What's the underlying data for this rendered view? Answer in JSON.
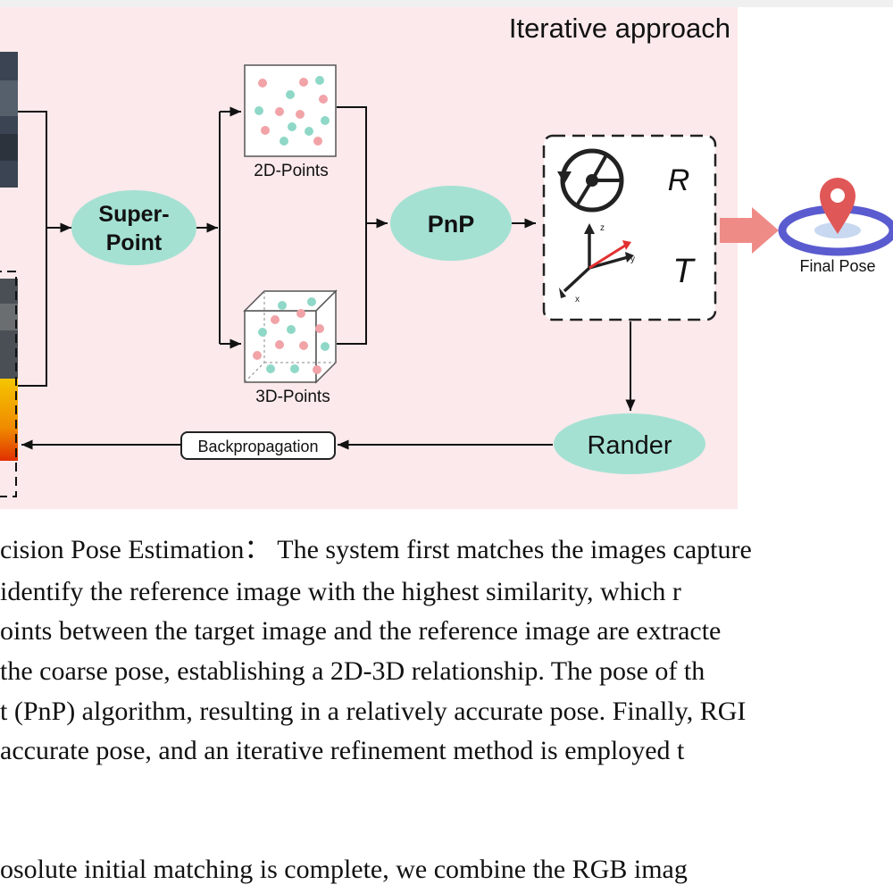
{
  "figure": {
    "panel_title": "Iterative approach",
    "superpoint_label": [
      "Super-",
      "Point"
    ],
    "points_2d_label": "2D-Points",
    "points_3d_label": "3D-Points",
    "pnp_label": "PnP",
    "rotation_symbol": "R",
    "translation_symbol": "T",
    "axis_x": "x",
    "axis_y": "y",
    "axis_z": "z",
    "final_pose_label": "Final Pose",
    "render_label": "Rander",
    "backprop_label": "Backpropagation",
    "colors": {
      "panel_bg": "#fbe9eb",
      "node_fill": "#a4e1d3",
      "dot_pink": "#f1a3a8",
      "dot_teal": "#8fd8c8",
      "arrow_red": "#ef8b87",
      "ring_blue": "#5b5bd0",
      "pin_red": "#e05757"
    }
  },
  "text": {
    "line1": "cision Pose Estimation： The system first matches the images capture",
    "line2": "identify  the  reference  image  with  the  highest  similarity,  which  r",
    "line3": "oints between the target image and the reference image are extracte",
    "line4": " the  coarse  pose,  establishing  a  2D-3D  relationship.  The  pose  of  th",
    "line5": "t (PnP) algorithm, resulting in a relatively accurate pose. Finally, RGI",
    "line6": " accurate  pose,  and  an  iterative  refinement  method  is  employed  t",
    "line7": "osolute   initial  matching  is  complete,  we  combine  the  RGB  imag"
  }
}
